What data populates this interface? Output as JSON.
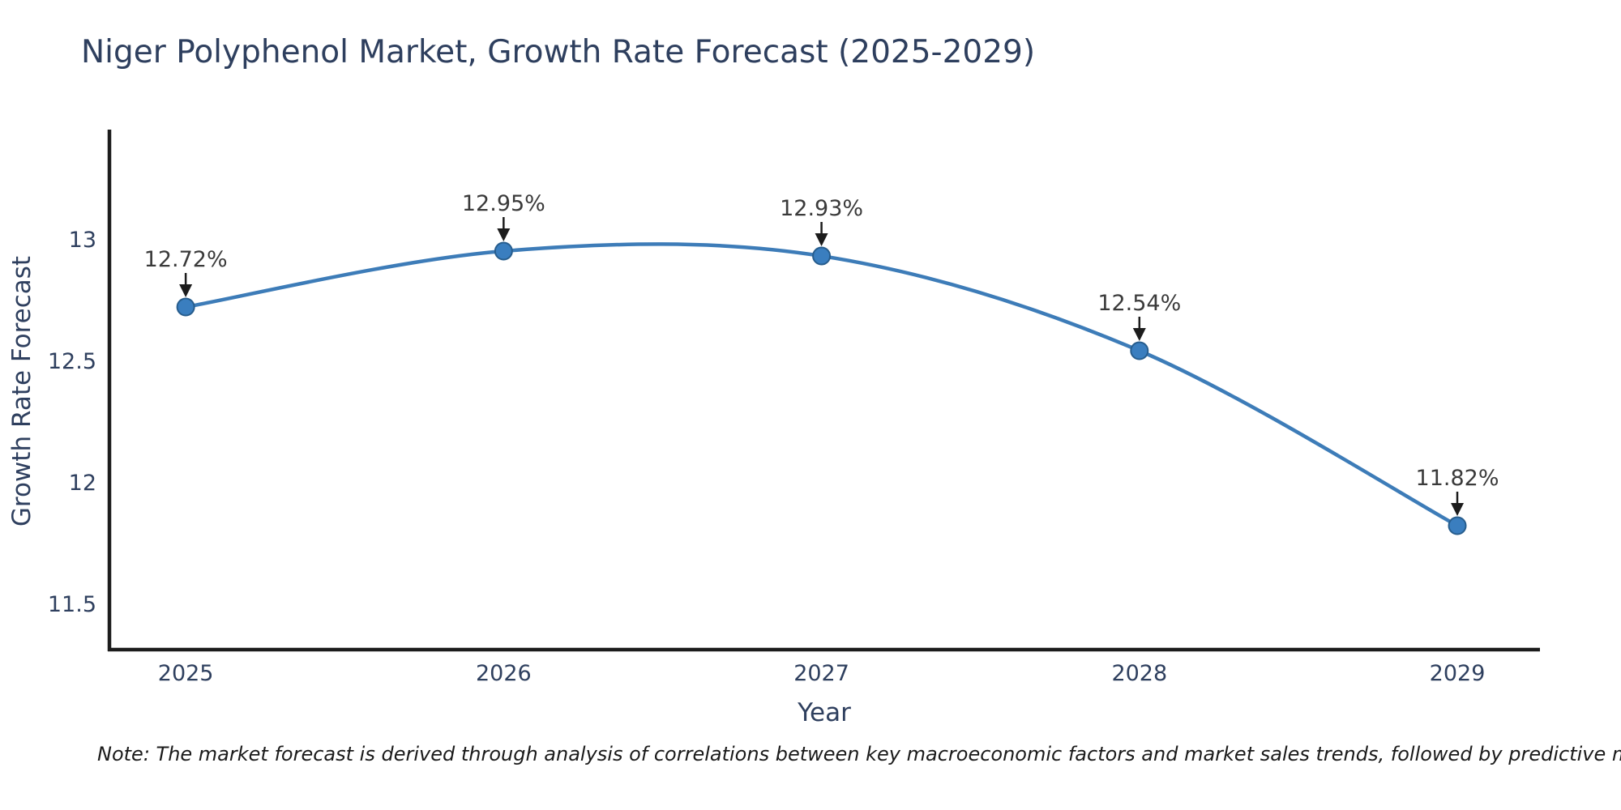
{
  "title": "Niger Polyphenol Market, Growth Rate Forecast (2025-2029)",
  "note": "Note: The market forecast is derived through analysis of correlations between key macroeconomic factors and market sales trends, followed by predictive modeling to project future sal",
  "chart_data": {
    "type": "line",
    "title": "Niger Polyphenol Market, Growth Rate Forecast (2025-2029)",
    "xlabel": "Year",
    "ylabel": "Growth Rate Forecast",
    "x": [
      2025,
      2026,
      2027,
      2028,
      2029
    ],
    "values": [
      12.72,
      12.95,
      12.93,
      12.54,
      11.82
    ],
    "point_labels": [
      "12.72%",
      "12.95%",
      "12.93%",
      "12.54%",
      "11.82%"
    ],
    "xtick_labels": [
      "2025",
      "2026",
      "2027",
      "2028",
      "2029"
    ],
    "yticks": [
      11.5,
      12,
      12.5,
      13
    ],
    "ytick_labels": [
      "11.5",
      "12",
      "12.5",
      "13"
    ],
    "xlim": [
      2024.76,
      2029.26
    ],
    "ylim": [
      11.31,
      13.45
    ],
    "grid": false,
    "legend": "none",
    "line_style": "smooth-spline",
    "marker": "circle",
    "line_color": "#3d7cb8",
    "marker_color": "#3a7ebf",
    "marker_edge_color": "#275d8d",
    "axis_color": "#1c1c1c",
    "text_color": "#2e3f5e",
    "annotation_color": "#3a3a3a",
    "annotation_arrow_color": "#1c1c1c",
    "background_color": "#ffffff"
  }
}
